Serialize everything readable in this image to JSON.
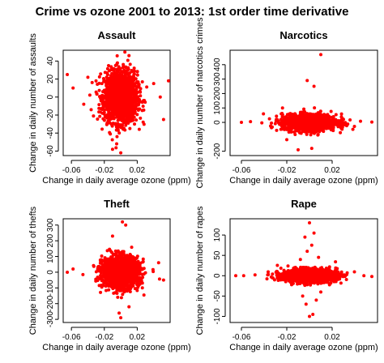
{
  "page_title": "Crime vs ozone 2001 to 2013: 1st order time derivative",
  "chart_data": [
    {
      "type": "scatter",
      "title": "Assault",
      "xlabel": "Change in daily average ozone (ppm)",
      "ylabel": "Change in daily number of assaults",
      "xlim": [
        -0.07,
        0.06
      ],
      "ylim": [
        -65,
        52
      ],
      "xticks": [
        -0.06,
        -0.02,
        0.02
      ],
      "xtick_labels": [
        "-0.06",
        "-0.02",
        "0.02"
      ],
      "yticks": [
        -60,
        -40,
        -20,
        0,
        20,
        40
      ],
      "ytick_labels": [
        "-60",
        "-40",
        "-20",
        "0",
        "20",
        "40"
      ],
      "color": "#ff0000",
      "series": [
        {
          "cloud": {
            "x_center": 0.0,
            "x_spread": 0.01,
            "y_center": 0,
            "y_spread": 14,
            "count": 1800
          },
          "points": [
            {
              "x": -0.065,
              "y": 25
            },
            {
              "x": -0.058,
              "y": 10
            },
            {
              "x": -0.045,
              "y": -8
            },
            {
              "x": -0.04,
              "y": 22
            },
            {
              "x": -0.036,
              "y": -14
            },
            {
              "x": 0.04,
              "y": 15
            },
            {
              "x": 0.048,
              "y": 0
            },
            {
              "x": 0.052,
              "y": -25
            },
            {
              "x": 0.058,
              "y": 18
            },
            {
              "x": -0.01,
              "y": -58
            },
            {
              "x": 0.0,
              "y": -62
            },
            {
              "x": 0.005,
              "y": 50
            },
            {
              "x": 0.01,
              "y": 46
            },
            {
              "x": -0.005,
              "y": -52
            }
          ]
        }
      ]
    },
    {
      "type": "scatter",
      "title": "Narcotics",
      "xlabel": "Change in daily average ozone (ppm)",
      "ylabel": "Change in daily number of narcotics crimes",
      "xlim": [
        -0.07,
        0.06
      ],
      "ylim": [
        -230,
        500
      ],
      "xticks": [
        -0.06,
        -0.02,
        0.02
      ],
      "xtick_labels": [
        "-0.06",
        "-0.02",
        "0.02"
      ],
      "yticks": [
        -200,
        0,
        100,
        200,
        300,
        400
      ],
      "ytick_labels": [
        "-200",
        "0",
        "100",
        "200",
        "300",
        "400"
      ],
      "color": "#ff0000",
      "series": [
        {
          "cloud": {
            "x_center": 0.0,
            "x_spread": 0.012,
            "y_center": 0,
            "y_spread": 28,
            "count": 1400
          },
          "points": [
            {
              "x": -0.06,
              "y": 0
            },
            {
              "x": -0.052,
              "y": 5
            },
            {
              "x": -0.042,
              "y": -3
            },
            {
              "x": 0.045,
              "y": 8
            },
            {
              "x": 0.055,
              "y": 2
            },
            {
              "x": 0.01,
              "y": 470
            },
            {
              "x": -0.002,
              "y": 290
            },
            {
              "x": 0.004,
              "y": 250
            },
            {
              "x": -0.01,
              "y": -190
            },
            {
              "x": 0.002,
              "y": -180
            },
            {
              "x": -0.02,
              "y": -120
            }
          ]
        }
      ]
    },
    {
      "type": "scatter",
      "title": "Theft",
      "xlabel": "Change in daily average ozone (ppm)",
      "ylabel": "Change in daily number of thefts",
      "xlim": [
        -0.07,
        0.06
      ],
      "ylim": [
        -320,
        340
      ],
      "xticks": [
        -0.06,
        -0.02,
        0.02
      ],
      "xtick_labels": [
        "-0.06",
        "-0.02",
        "0.02"
      ],
      "yticks": [
        -300,
        -200,
        -100,
        0,
        100,
        200,
        300
      ],
      "ytick_labels": [
        "-300",
        "-200",
        "-100",
        "0",
        "100",
        "200",
        "300"
      ],
      "color": "#ff0000",
      "series": [
        {
          "cloud": {
            "x_center": 0.0,
            "x_spread": 0.011,
            "y_center": 0,
            "y_spread": 48,
            "count": 1800
          },
          "points": [
            {
              "x": -0.065,
              "y": 0
            },
            {
              "x": -0.058,
              "y": 20
            },
            {
              "x": -0.046,
              "y": -15
            },
            {
              "x": 0.046,
              "y": 60
            },
            {
              "x": 0.052,
              "y": -50
            },
            {
              "x": 0.002,
              "y": 320
            },
            {
              "x": 0.006,
              "y": 300
            },
            {
              "x": -0.002,
              "y": -260
            },
            {
              "x": 0.0,
              "y": -290
            },
            {
              "x": -0.01,
              "y": 230
            },
            {
              "x": 0.01,
              "y": -220
            }
          ]
        }
      ]
    },
    {
      "type": "scatter",
      "title": "Rape",
      "xlabel": "Change in daily average ozone (ppm)",
      "ylabel": "Change in daily number of rapes",
      "xlim": [
        -0.07,
        0.06
      ],
      "ylim": [
        -115,
        140
      ],
      "xticks": [
        -0.06,
        -0.02,
        0.02
      ],
      "xtick_labels": [
        "-0.06",
        "-0.02",
        "0.02"
      ],
      "yticks": [
        -100,
        -50,
        0,
        50,
        100
      ],
      "ytick_labels": [
        "-100",
        "-50",
        "0",
        "50",
        "100"
      ],
      "color": "#ff0000",
      "series": [
        {
          "cloud": {
            "x_center": 0.0,
            "x_spread": 0.012,
            "y_center": 0,
            "y_spread": 8,
            "count": 1400
          },
          "points": [
            {
              "x": -0.065,
              "y": 0
            },
            {
              "x": -0.058,
              "y": 0
            },
            {
              "x": -0.048,
              "y": 2
            },
            {
              "x": 0.048,
              "y": 0
            },
            {
              "x": 0.055,
              "y": -2
            },
            {
              "x": 0.0,
              "y": 130
            },
            {
              "x": 0.004,
              "y": 105
            },
            {
              "x": -0.004,
              "y": 95
            },
            {
              "x": 0.002,
              "y": 75
            },
            {
              "x": -0.002,
              "y": 60
            },
            {
              "x": 0.008,
              "y": 45
            },
            {
              "x": -0.008,
              "y": 40
            },
            {
              "x": 0.0,
              "y": -100
            },
            {
              "x": 0.003,
              "y": -95
            },
            {
              "x": -0.003,
              "y": -70
            },
            {
              "x": 0.006,
              "y": -60
            },
            {
              "x": -0.006,
              "y": -50
            },
            {
              "x": 0.01,
              "y": -40
            }
          ]
        }
      ]
    }
  ]
}
